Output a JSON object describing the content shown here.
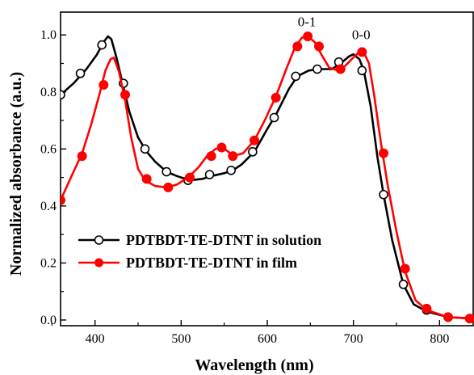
{
  "chart_data": {
    "type": "line",
    "title": "",
    "xlabel": "Wavelength (nm)",
    "ylabel": "Normalized absorbance (a.u.)",
    "xlim": [
      360,
      840
    ],
    "ylim": [
      -0.02,
      1.08
    ],
    "xticks": [
      400,
      500,
      600,
      700,
      800
    ],
    "yticks": [
      0.0,
      0.2,
      0.4,
      0.6,
      0.8,
      1.0
    ],
    "ytick_labels": [
      "0.0",
      "0.2",
      "0.4",
      "0.6",
      "0.8",
      "1.0"
    ],
    "grid": false,
    "legend_position": "lower-left",
    "series": [
      {
        "name": "PDTBDT-TE-DTNT in solution",
        "color": "#000000",
        "marker": "open-circle",
        "curve": [
          [
            360,
            0.79
          ],
          [
            375,
            0.83
          ],
          [
            390,
            0.88
          ],
          [
            402,
            0.93
          ],
          [
            410,
            0.975
          ],
          [
            415,
            0.995
          ],
          [
            419,
            0.985
          ],
          [
            425,
            0.92
          ],
          [
            432,
            0.83
          ],
          [
            440,
            0.73
          ],
          [
            450,
            0.64
          ],
          [
            460,
            0.59
          ],
          [
            470,
            0.555
          ],
          [
            483,
            0.52
          ],
          [
            495,
            0.505
          ],
          [
            510,
            0.49
          ],
          [
            525,
            0.495
          ],
          [
            535,
            0.505
          ],
          [
            550,
            0.515
          ],
          [
            560,
            0.525
          ],
          [
            570,
            0.545
          ],
          [
            585,
            0.59
          ],
          [
            600,
            0.67
          ],
          [
            610,
            0.72
          ],
          [
            625,
            0.81
          ],
          [
            635,
            0.855
          ],
          [
            648,
            0.875
          ],
          [
            660,
            0.88
          ],
          [
            675,
            0.88
          ],
          [
            685,
            0.9
          ],
          [
            695,
            0.925
          ],
          [
            700,
            0.932
          ],
          [
            707,
            0.915
          ],
          [
            712,
            0.875
          ],
          [
            720,
            0.75
          ],
          [
            728,
            0.57
          ],
          [
            735,
            0.44
          ],
          [
            745,
            0.28
          ],
          [
            758,
            0.125
          ],
          [
            770,
            0.055
          ],
          [
            785,
            0.03
          ],
          [
            810,
            0.01
          ],
          [
            840,
            0.005
          ]
        ],
        "markers": [
          [
            360,
            0.79
          ],
          [
            383,
            0.865
          ],
          [
            408,
            0.965
          ],
          [
            433,
            0.83
          ],
          [
            458,
            0.6
          ],
          [
            483,
            0.52
          ],
          [
            508,
            0.49
          ],
          [
            533,
            0.51
          ],
          [
            558,
            0.525
          ],
          [
            583,
            0.59
          ],
          [
            608,
            0.71
          ],
          [
            633,
            0.855
          ],
          [
            658,
            0.88
          ],
          [
            683,
            0.905
          ],
          [
            710,
            0.875
          ],
          [
            735,
            0.44
          ],
          [
            758,
            0.125
          ],
          [
            785,
            0.035
          ],
          [
            810,
            0.01
          ]
        ]
      },
      {
        "name": "PDTBDT-TE-DTNT in film",
        "color": "#ff0000",
        "marker": "filled-circle",
        "curve": [
          [
            360,
            0.42
          ],
          [
            372,
            0.5
          ],
          [
            385,
            0.585
          ],
          [
            395,
            0.68
          ],
          [
            405,
            0.79
          ],
          [
            412,
            0.875
          ],
          [
            418,
            0.915
          ],
          [
            422,
            0.92
          ],
          [
            428,
            0.87
          ],
          [
            435,
            0.77
          ],
          [
            442,
            0.64
          ],
          [
            450,
            0.53
          ],
          [
            458,
            0.49
          ],
          [
            470,
            0.47
          ],
          [
            483,
            0.465
          ],
          [
            495,
            0.475
          ],
          [
            508,
            0.5
          ],
          [
            520,
            0.535
          ],
          [
            530,
            0.575
          ],
          [
            540,
            0.6
          ],
          [
            548,
            0.605
          ],
          [
            555,
            0.59
          ],
          [
            560,
            0.575
          ],
          [
            572,
            0.585
          ],
          [
            585,
            0.63
          ],
          [
            597,
            0.7
          ],
          [
            610,
            0.785
          ],
          [
            622,
            0.88
          ],
          [
            632,
            0.955
          ],
          [
            640,
            0.99
          ],
          [
            647,
            0.995
          ],
          [
            655,
            0.975
          ],
          [
            663,
            0.93
          ],
          [
            672,
            0.885
          ],
          [
            682,
            0.875
          ],
          [
            690,
            0.89
          ],
          [
            698,
            0.915
          ],
          [
            705,
            0.935
          ],
          [
            712,
            0.94
          ],
          [
            718,
            0.9
          ],
          [
            724,
            0.79
          ],
          [
            732,
            0.62
          ],
          [
            740,
            0.47
          ],
          [
            750,
            0.31
          ],
          [
            760,
            0.17
          ],
          [
            772,
            0.07
          ],
          [
            785,
            0.035
          ],
          [
            810,
            0.01
          ],
          [
            840,
            0.005
          ]
        ],
        "markers": [
          [
            360,
            0.42
          ],
          [
            385,
            0.575
          ],
          [
            410,
            0.825
          ],
          [
            435,
            0.79
          ],
          [
            460,
            0.495
          ],
          [
            485,
            0.465
          ],
          [
            510,
            0.5
          ],
          [
            535,
            0.575
          ],
          [
            547,
            0.605
          ],
          [
            560,
            0.575
          ],
          [
            585,
            0.63
          ],
          [
            610,
            0.78
          ],
          [
            635,
            0.96
          ],
          [
            647,
            0.995
          ],
          [
            660,
            0.96
          ],
          [
            685,
            0.88
          ],
          [
            710,
            0.94
          ],
          [
            735,
            0.585
          ],
          [
            760,
            0.18
          ],
          [
            785,
            0.04
          ],
          [
            810,
            0.01
          ],
          [
            835,
            0.005
          ]
        ]
      }
    ],
    "annotations": [
      {
        "text": "0-1",
        "x": 646,
        "y": 1.03
      },
      {
        "text": "0-0",
        "x": 709,
        "y": 0.985
      }
    ]
  }
}
